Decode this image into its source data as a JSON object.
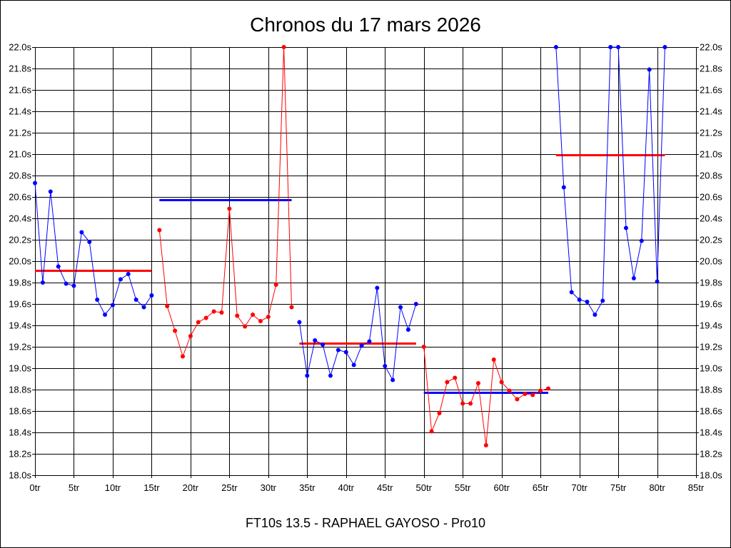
{
  "chart_data": {
    "type": "line",
    "title": "Chronos du 17 mars 2026",
    "footer": "FT10s 13.5 - RAPHAEL GAYOSO - Pro10",
    "xlabel": "",
    "ylabel": "",
    "xlim": [
      0,
      85
    ],
    "ylim": [
      18.0,
      22.0
    ],
    "grid": true,
    "x_tick_values": [
      0,
      5,
      10,
      15,
      20,
      25,
      30,
      35,
      40,
      45,
      50,
      55,
      60,
      65,
      70,
      75,
      80,
      85
    ],
    "x_ticks": [
      "0tr",
      "5tr",
      "10tr",
      "15tr",
      "20tr",
      "25tr",
      "30tr",
      "35tr",
      "40tr",
      "45tr",
      "50tr",
      "55tr",
      "60tr",
      "65tr",
      "70tr",
      "75tr",
      "80tr",
      "85tr"
    ],
    "y_tick_values": [
      18.0,
      18.2,
      18.4,
      18.6,
      18.8,
      19.0,
      19.2,
      19.4,
      19.6,
      19.8,
      20.0,
      20.2,
      20.4,
      20.6,
      20.8,
      21.0,
      21.2,
      21.4,
      21.6,
      21.8,
      22.0
    ],
    "y_ticks": [
      "18.0s",
      "18.2s",
      "18.4s",
      "18.6s",
      "18.8s",
      "19.0s",
      "19.2s",
      "19.4s",
      "19.6s",
      "19.8s",
      "20.0s",
      "20.2s",
      "20.4s",
      "20.6s",
      "20.8s",
      "21.0s",
      "21.2s",
      "21.4s",
      "21.6s",
      "21.8s",
      "22.0s"
    ],
    "series": [
      {
        "color": "#0000ff",
        "x": [
          0,
          1,
          2,
          3,
          4,
          5,
          6,
          7,
          8,
          9,
          10,
          11,
          12,
          13,
          14,
          15
        ],
        "values": [
          20.73,
          19.8,
          20.65,
          19.95,
          19.79,
          19.77,
          20.27,
          20.18,
          19.64,
          19.5,
          19.59,
          19.83,
          19.88,
          19.64,
          19.57,
          19.68
        ]
      },
      {
        "color": "#ff0000",
        "x": [
          16,
          17,
          18,
          19,
          20,
          21,
          22,
          23,
          24,
          25,
          26,
          27,
          28,
          29,
          30,
          31,
          32,
          33
        ],
        "values": [
          20.29,
          19.58,
          19.35,
          19.11,
          19.3,
          19.43,
          19.47,
          19.53,
          19.52,
          20.49,
          19.49,
          19.39,
          19.5,
          19.44,
          19.48,
          19.78,
          22.0,
          19.57
        ]
      },
      {
        "color": "#0000ff",
        "x": [
          34,
          35,
          36,
          37,
          38,
          39,
          40,
          41,
          42,
          43,
          44,
          45,
          46,
          47,
          48,
          49
        ],
        "values": [
          19.43,
          18.93,
          19.26,
          19.22,
          18.93,
          19.17,
          19.15,
          19.03,
          19.21,
          19.25,
          19.75,
          19.02,
          18.89,
          19.57,
          19.36,
          19.6
        ]
      },
      {
        "color": "#ff0000",
        "x": [
          50,
          51,
          52,
          53,
          54,
          55,
          56,
          57,
          58,
          59,
          60,
          61,
          62,
          63,
          64,
          65,
          66
        ],
        "values": [
          19.2,
          18.41,
          18.58,
          18.87,
          18.91,
          18.67,
          18.67,
          18.86,
          18.28,
          19.08,
          18.87,
          18.79,
          18.71,
          18.76,
          18.75,
          18.79,
          18.81
        ]
      },
      {
        "color": "#0000ff",
        "x": [
          67,
          68,
          69,
          70,
          71,
          72,
          73,
          74,
          75,
          76,
          77,
          78,
          79,
          80,
          81
        ],
        "values": [
          22.0,
          20.69,
          19.71,
          19.64,
          19.62,
          19.5,
          19.63,
          22.0,
          22.0,
          20.31,
          19.84,
          20.19,
          21.79,
          19.81,
          22.0
        ]
      }
    ],
    "averages": [
      {
        "color": "#ff0000",
        "x": [
          0,
          15
        ],
        "value": 19.91
      },
      {
        "color": "#0000ff",
        "x": [
          16,
          33
        ],
        "value": 20.57
      },
      {
        "color": "#ff0000",
        "x": [
          34,
          49
        ],
        "value": 19.23
      },
      {
        "color": "#0000ff",
        "x": [
          50,
          66
        ],
        "value": 18.77
      },
      {
        "color": "#ff0000",
        "x": [
          67,
          81
        ],
        "value": 20.99
      }
    ]
  }
}
